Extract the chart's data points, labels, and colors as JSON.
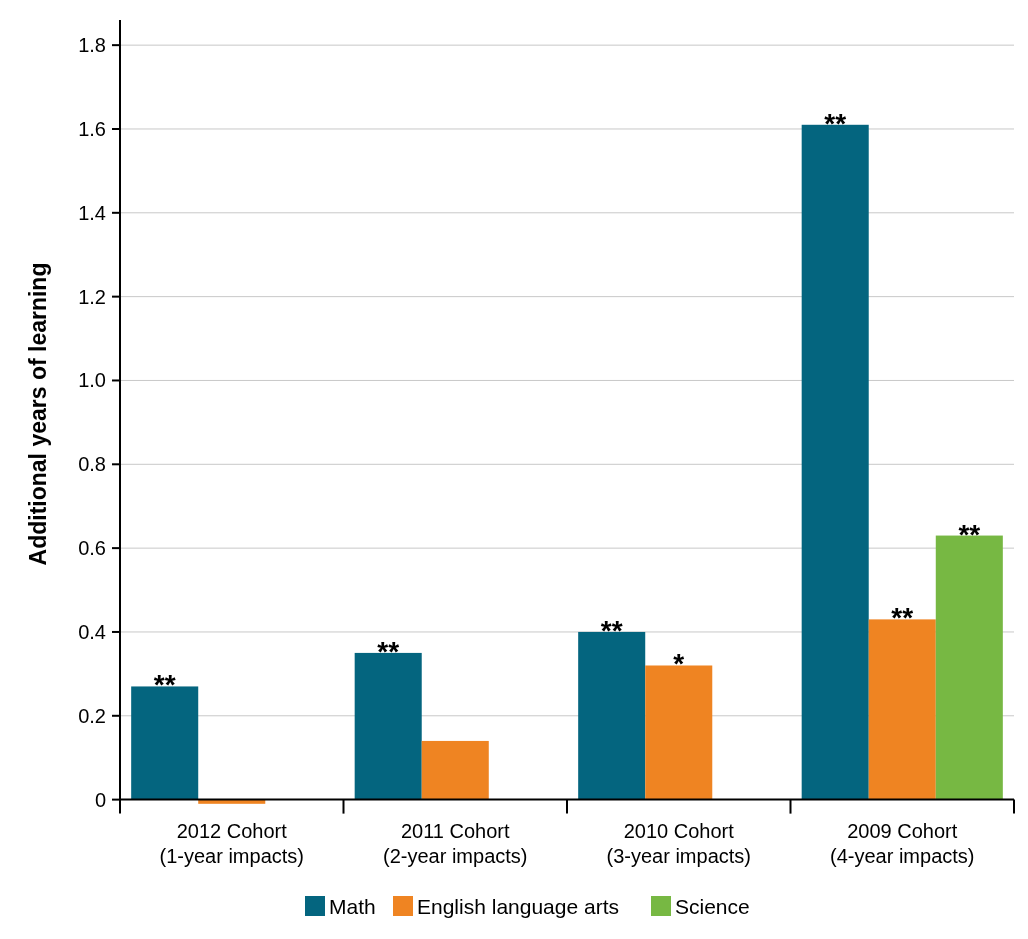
{
  "chart_data": {
    "type": "bar",
    "ylabel": "Additional years of learning",
    "categories": [
      "2012 Cohort\n(1-year impacts)",
      "2011 Cohort\n(2-year impacts)",
      "2010 Cohort\n(3-year impacts)",
      "2009 Cohort\n(4-year impacts)"
    ],
    "series": [
      {
        "name": "Math",
        "color": "#04657f",
        "values": [
          0.27,
          0.35,
          0.4,
          1.61
        ],
        "value_labels": [
          "**",
          "**",
          "**",
          "**"
        ]
      },
      {
        "name": "English language arts",
        "color": "#ef8422",
        "values": [
          -0.01,
          0.14,
          0.32,
          0.43
        ],
        "value_labels": [
          null,
          null,
          "*",
          "**"
        ]
      },
      {
        "name": "Science",
        "color": "#77b843",
        "values": [
          null,
          null,
          null,
          0.63
        ],
        "value_labels": [
          null,
          null,
          null,
          "**"
        ]
      }
    ],
    "ylim": [
      -0.02,
      1.86
    ],
    "yticks": [
      0,
      0.2,
      0.4,
      0.6,
      0.8,
      {
        "value": 1,
        "label": "1.0"
      },
      1.2,
      1.4,
      1.6,
      1.8
    ],
    "grid": "y",
    "legend": "bottom"
  }
}
